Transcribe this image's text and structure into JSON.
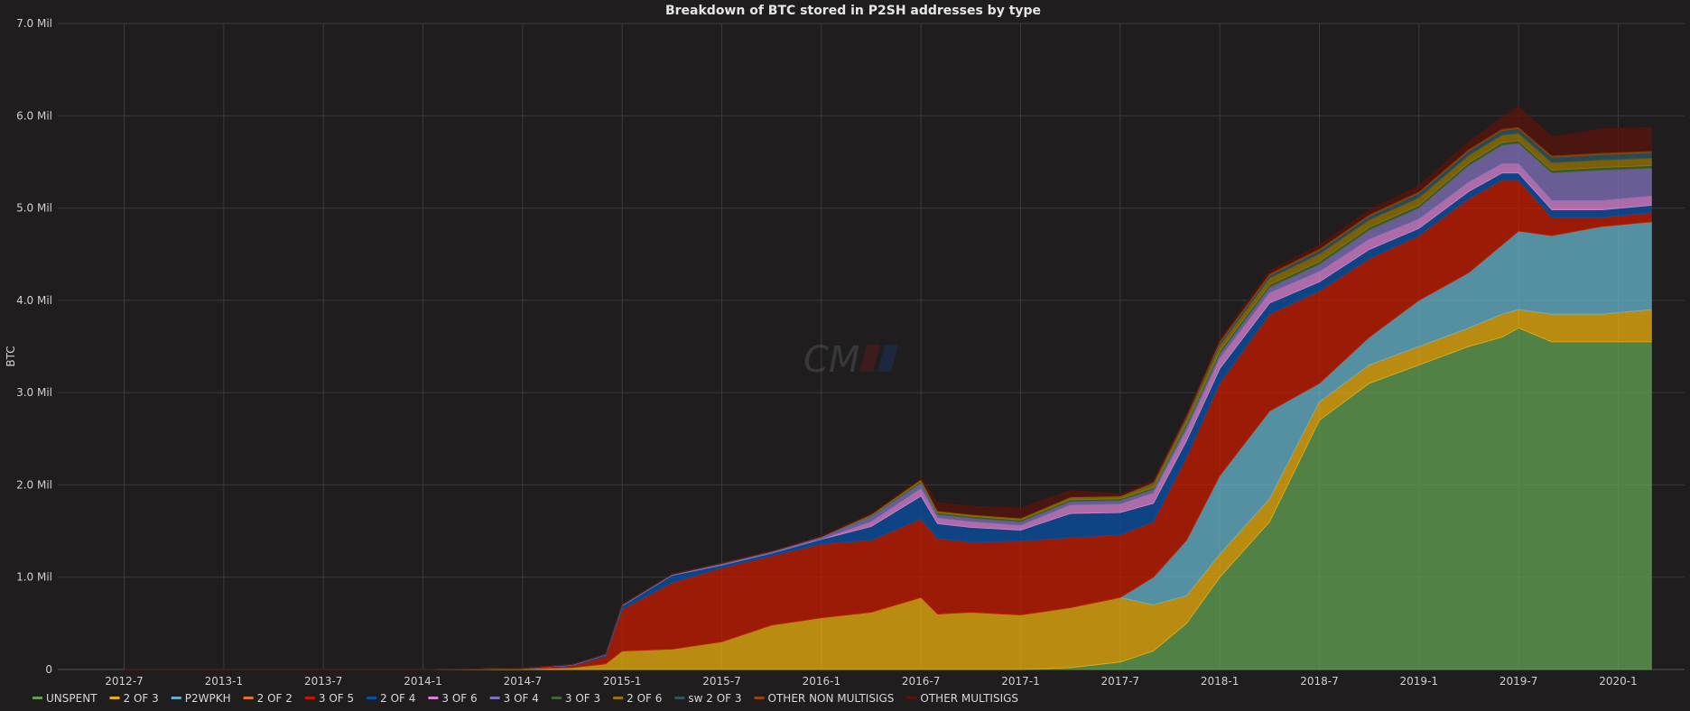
{
  "chart_data": {
    "type": "area",
    "title": "Breakdown of BTC stored in P2SH addresses by type",
    "xlabel": "",
    "ylabel": "BTC",
    "ylim": [
      0,
      7000000
    ],
    "yticks": [
      {
        "value": 0,
        "label": "0"
      },
      {
        "value": 1000000,
        "label": "1.0 Mil"
      },
      {
        "value": 2000000,
        "label": "2.0 Mil"
      },
      {
        "value": 3000000,
        "label": "3.0 Mil"
      },
      {
        "value": 4000000,
        "label": "4.0 Mil"
      },
      {
        "value": 5000000,
        "label": "5.0 Mil"
      },
      {
        "value": 6000000,
        "label": "6.0 Mil"
      },
      {
        "value": 7000000,
        "label": "7.0 Mil"
      }
    ],
    "xlim": [
      "2012-03",
      "2020-05"
    ],
    "xticks": [
      "2012-7",
      "2013-1",
      "2013-7",
      "2014-1",
      "2014-7",
      "2015-1",
      "2015-7",
      "2016-1",
      "2016-7",
      "2017-1",
      "2017-7",
      "2018-1",
      "2018-7",
      "2019-1",
      "2019-7",
      "2020-1"
    ],
    "grid": true,
    "legend": "bottom",
    "stacked": true,
    "x": [
      "2012-07",
      "2013-07",
      "2014-01",
      "2014-07",
      "2014-10",
      "2014-12",
      "2015-01",
      "2015-04",
      "2015-07",
      "2015-10",
      "2016-01",
      "2016-04",
      "2016-07",
      "2016-08",
      "2016-10",
      "2017-01",
      "2017-04",
      "2017-07",
      "2017-09",
      "2017-11",
      "2018-01",
      "2018-04",
      "2018-07",
      "2018-10",
      "2019-01",
      "2019-04",
      "2019-06",
      "2019-07",
      "2019-09",
      "2019-12",
      "2020-03"
    ],
    "series": [
      {
        "name": "UNSPENT",
        "color": "#629e51",
        "values": [
          0,
          0,
          0,
          0,
          0,
          0,
          0,
          0,
          0,
          0,
          0,
          0,
          0,
          0,
          0,
          0,
          20000,
          80000,
          200000,
          500000,
          1000000,
          1600000,
          2700000,
          3100000,
          3300000,
          3500000,
          3600000,
          3700000,
          3550000,
          3550000,
          3550000
        ]
      },
      {
        "name": "2 OF 3",
        "color": "#e5ac0e",
        "values": [
          0,
          0,
          0,
          5000,
          20000,
          60000,
          200000,
          220000,
          300000,
          480000,
          560000,
          620000,
          780000,
          600000,
          620000,
          590000,
          650000,
          700000,
          500000,
          300000,
          250000,
          250000,
          200000,
          200000,
          200000,
          200000,
          250000,
          200000,
          300000,
          300000,
          350000
        ]
      },
      {
        "name": "P2WPKH",
        "color": "#64b0c8",
        "values": [
          0,
          0,
          0,
          0,
          0,
          0,
          0,
          0,
          0,
          0,
          0,
          0,
          0,
          0,
          0,
          0,
          0,
          0,
          300000,
          600000,
          850000,
          950000,
          200000,
          300000,
          500000,
          600000,
          750000,
          850000,
          850000,
          950000,
          950000
        ]
      },
      {
        "name": "2 OF 2",
        "color": "#e0752d",
        "values": [
          0,
          0,
          0,
          0,
          0,
          0,
          0,
          0,
          0,
          0,
          0,
          0,
          0,
          0,
          0,
          0,
          0,
          0,
          0,
          0,
          0,
          0,
          0,
          0,
          0,
          0,
          0,
          0,
          0,
          0,
          0
        ]
      },
      {
        "name": "3 OF 5",
        "color": "#bf1b00",
        "values": [
          0,
          0,
          0,
          3000,
          20000,
          80000,
          450000,
          720000,
          800000,
          750000,
          800000,
          780000,
          850000,
          820000,
          760000,
          800000,
          760000,
          680000,
          600000,
          900000,
          1000000,
          1050000,
          1000000,
          850000,
          700000,
          800000,
          700000,
          550000,
          200000,
          100000,
          100000
        ]
      },
      {
        "name": "2 OF 4",
        "color": "#0a50a1",
        "values": [
          0,
          0,
          0,
          2000,
          8000,
          20000,
          40000,
          80000,
          30000,
          30000,
          50000,
          150000,
          250000,
          160000,
          160000,
          120000,
          260000,
          240000,
          200000,
          180000,
          160000,
          120000,
          100000,
          100000,
          80000,
          80000,
          80000,
          80000,
          80000,
          80000,
          80000
        ]
      },
      {
        "name": "3 OF 6",
        "color": "#d683ce",
        "values": [
          0,
          0,
          0,
          0,
          0,
          0,
          0,
          0,
          0,
          0,
          0,
          50000,
          80000,
          60000,
          60000,
          50000,
          90000,
          90000,
          110000,
          110000,
          110000,
          110000,
          110000,
          110000,
          100000,
          100000,
          100000,
          100000,
          100000,
          100000,
          100000
        ]
      },
      {
        "name": "3 OF 4",
        "color": "#806eb7",
        "values": [
          0,
          0,
          0,
          1000,
          5000,
          5000,
          10000,
          10000,
          20000,
          20000,
          30000,
          60000,
          60000,
          40000,
          40000,
          40000,
          40000,
          40000,
          40000,
          50000,
          50000,
          60000,
          80000,
          100000,
          120000,
          180000,
          200000,
          220000,
          300000,
          330000,
          300000
        ]
      },
      {
        "name": "3 OF 3",
        "color": "#3f6833",
        "values": [
          0,
          0,
          0,
          0,
          0,
          0,
          0,
          0,
          0,
          0,
          0,
          10000,
          20000,
          20000,
          20000,
          20000,
          20000,
          20000,
          20000,
          30000,
          30000,
          30000,
          30000,
          30000,
          30000,
          30000,
          30000,
          30000,
          30000,
          30000,
          30000
        ]
      },
      {
        "name": "2 OF 6",
        "color": "#967302",
        "values": [
          0,
          0,
          0,
          0,
          0,
          0,
          0,
          0,
          0,
          0,
          0,
          10000,
          20000,
          20000,
          20000,
          20000,
          30000,
          30000,
          40000,
          50000,
          60000,
          70000,
          80000,
          80000,
          80000,
          80000,
          80000,
          80000,
          80000,
          80000,
          80000
        ]
      },
      {
        "name": "sw 2 OF 3",
        "color": "#2f575e",
        "values": [
          0,
          0,
          0,
          0,
          0,
          0,
          0,
          0,
          0,
          0,
          0,
          0,
          0,
          0,
          0,
          0,
          0,
          0,
          10000,
          20000,
          30000,
          30000,
          40000,
          40000,
          50000,
          50000,
          50000,
          50000,
          60000,
          60000,
          60000
        ]
      },
      {
        "name": "OTHER NON MULTISIGS",
        "color": "#99440a",
        "values": [
          0,
          0,
          0,
          0,
          0,
          0,
          0,
          0,
          0,
          0,
          0,
          0,
          0,
          0,
          0,
          0,
          0,
          0,
          10000,
          10000,
          20000,
          20000,
          20000,
          20000,
          20000,
          20000,
          20000,
          20000,
          20000,
          20000,
          20000
        ]
      },
      {
        "name": "OTHER MULTISIGS",
        "color": "#58140c",
        "values": [
          0,
          0,
          0,
          0,
          0,
          0,
          0,
          0,
          0,
          0,
          10000,
          10000,
          10000,
          90000,
          90000,
          110000,
          70000,
          20000,
          20000,
          20000,
          20000,
          30000,
          40000,
          50000,
          60000,
          80000,
          120000,
          220000,
          200000,
          260000,
          250000
        ]
      }
    ]
  },
  "watermark": {
    "text": "CM"
  }
}
